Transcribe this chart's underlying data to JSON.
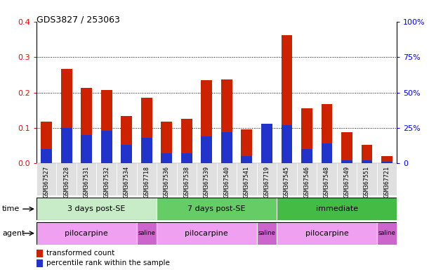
{
  "title": "GDS3827 / 253063",
  "samples": [
    "GSM367527",
    "GSM367528",
    "GSM367531",
    "GSM367532",
    "GSM367534",
    "GSM367718",
    "GSM367536",
    "GSM367538",
    "GSM367539",
    "GSM367540",
    "GSM367541",
    "GSM367719",
    "GSM367545",
    "GSM367546",
    "GSM367548",
    "GSM367549",
    "GSM367551",
    "GSM367721"
  ],
  "red_values": [
    0.117,
    0.267,
    0.213,
    0.207,
    0.133,
    0.185,
    0.117,
    0.125,
    0.234,
    0.237,
    0.095,
    0.105,
    0.362,
    0.155,
    0.168,
    0.088,
    0.053,
    0.02
  ],
  "blue_pct": [
    10,
    25,
    20,
    23,
    13,
    18,
    7,
    7,
    19,
    22,
    5,
    28,
    27,
    10,
    14,
    2,
    2,
    1
  ],
  "time_groups": [
    {
      "label": "3 days post-SE",
      "start": 0,
      "end": 6,
      "color": "#c8ebc8"
    },
    {
      "label": "7 days post-SE",
      "start": 6,
      "end": 12,
      "color": "#66cc66"
    },
    {
      "label": "immediate",
      "start": 12,
      "end": 18,
      "color": "#44bb44"
    }
  ],
  "agent_groups": [
    {
      "label": "pilocarpine",
      "start": 0,
      "end": 5,
      "color": "#f0a0f0"
    },
    {
      "label": "saline",
      "start": 5,
      "end": 6,
      "color": "#cc66cc"
    },
    {
      "label": "pilocarpine",
      "start": 6,
      "end": 11,
      "color": "#f0a0f0"
    },
    {
      "label": "saline",
      "start": 11,
      "end": 12,
      "color": "#cc66cc"
    },
    {
      "label": "pilocarpine",
      "start": 12,
      "end": 17,
      "color": "#f0a0f0"
    },
    {
      "label": "saline",
      "start": 17,
      "end": 18,
      "color": "#cc66cc"
    }
  ],
  "ylim_left": [
    0,
    0.4
  ],
  "ylim_right": [
    0,
    100
  ],
  "yticks_left": [
    0,
    0.1,
    0.2,
    0.3,
    0.4
  ],
  "yticks_right": [
    0,
    25,
    50,
    75,
    100
  ],
  "bar_color_red": "#cc2200",
  "bar_color_blue": "#2233cc",
  "legend_red": "transformed count",
  "legend_blue": "percentile rank within the sample",
  "time_label": "time",
  "agent_label": "agent"
}
